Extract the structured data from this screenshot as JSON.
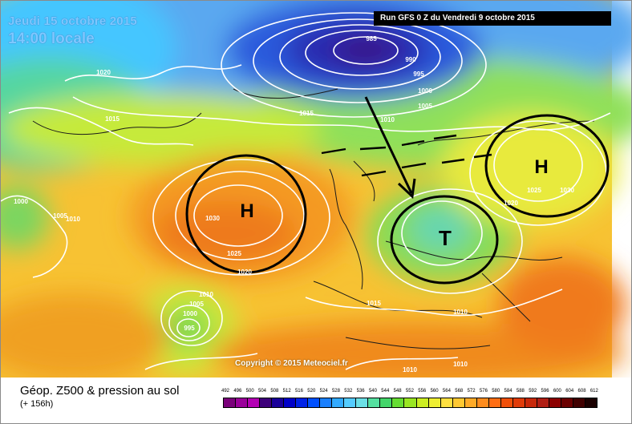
{
  "header": {
    "date": "Jeudi 15 octobre 2015",
    "time": "14:00 locale",
    "run": "Run GFS 0 Z du Vendredi 9 octobre 2015"
  },
  "map": {
    "pressure_labels": [
      "985",
      "990",
      "995",
      "1000",
      "1005",
      "1010",
      "1015",
      "1020",
      "1015",
      "1000",
      "1005",
      "1010",
      "1030",
      "1025",
      "1020",
      "1010",
      "1005",
      "1000",
      "995",
      "1015",
      "1010",
      "1010",
      "1010",
      "1025",
      "1030",
      "1020"
    ],
    "annotations": {
      "high_west": "H",
      "high_east": "H",
      "low_central": "T"
    }
  },
  "copyright": "Copyright © 2015 Meteociel.fr",
  "footer": {
    "title": "Géop. Z500 & pression au sol",
    "subtitle": "(+ 156h)"
  },
  "legend": {
    "labels": [
      "492",
      "496",
      "500",
      "504",
      "508",
      "512",
      "516",
      "520",
      "524",
      "528",
      "532",
      "536",
      "540",
      "544",
      "548",
      "552",
      "556",
      "560",
      "564",
      "568",
      "572",
      "576",
      "580",
      "584",
      "588",
      "592",
      "596",
      "600",
      "604",
      "608",
      "612"
    ],
    "colors": [
      "#7a007a",
      "#9a009a",
      "#b300b3",
      "#3d007a",
      "#1a0099",
      "#0000c8",
      "#0022e6",
      "#0050ff",
      "#1a80ff",
      "#33aaff",
      "#55ccff",
      "#6be0e6",
      "#55e0a0",
      "#44d66a",
      "#66dd33",
      "#99e622",
      "#ccee22",
      "#eeee33",
      "#ffe040",
      "#ffc832",
      "#ffaa28",
      "#ff8c1e",
      "#ff6e14",
      "#f0500a",
      "#e03c0a",
      "#c8280a",
      "#b01e14",
      "#8c0000",
      "#6a0000",
      "#400000",
      "#1a0000"
    ]
  }
}
